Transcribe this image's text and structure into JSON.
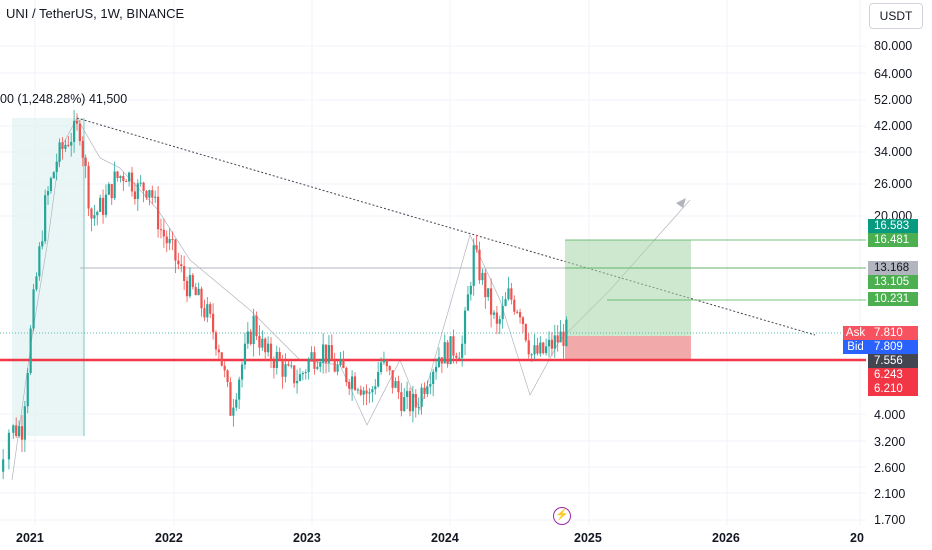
{
  "header": {
    "title": "UNI / TetherUS, 1W, BINANCE",
    "currency": "USDT"
  },
  "measure_label": "00 (1,248.28%) 41,500",
  "colors": {
    "up": "#26a69a",
    "down": "#ef5350",
    "support_line": "#f23645",
    "target_green": "#089981",
    "stop_red": "#f23645",
    "grid": "#f0f3fa"
  },
  "chart_data": {
    "type": "candlestick",
    "symbol": "UNI / TetherUS",
    "interval": "1W",
    "exchange": "BINANCE",
    "y_scale": "log",
    "y_ticks": [
      "80.000",
      "64.000",
      "52.000",
      "42.000",
      "34.000",
      "26.000",
      "20.000",
      "4.000",
      "3.200",
      "2.600",
      "2.100",
      "1.700"
    ],
    "x_ticks": [
      "2021",
      "2022",
      "2023",
      "2024",
      "2025",
      "2026",
      "20"
    ],
    "price_tags": [
      {
        "value": "16.583",
        "color": "#089981"
      },
      {
        "value": "16.481",
        "color": "#4caf50"
      },
      {
        "value": "13.168",
        "color": "#b2b5be"
      },
      {
        "value": "13.105",
        "color": "#4caf50"
      },
      {
        "value": "10.231",
        "color": "#4caf50"
      },
      {
        "value": "7.810",
        "color": "#f7525f"
      },
      {
        "value": "7.809",
        "color": "#2962ff"
      },
      {
        "value": "7.556",
        "color": "#434651"
      },
      {
        "value": "6.243",
        "color": "#f23645"
      },
      {
        "value": "6.210",
        "color": "#f23645"
      }
    ],
    "ask_label": "Ask",
    "bid_label": "Bid",
    "support_level": 6.21,
    "resistance_level": 13.168,
    "targets": [
      16.481,
      13.105,
      10.231
    ],
    "entry": 7.556,
    "stop": 6.243,
    "price_path": [
      [
        "2020-09",
        2.0
      ],
      [
        "2020-11",
        3.5
      ],
      [
        "2020-12",
        3.6
      ],
      [
        "2021-01",
        10.0
      ],
      [
        "2021-02",
        22.0
      ],
      [
        "2021-03",
        32.0
      ],
      [
        "2021-04",
        38.0
      ],
      [
        "2021-05",
        41.5
      ],
      [
        "2021-06",
        20.0
      ],
      [
        "2021-07",
        22.0
      ],
      [
        "2021-08",
        27.0
      ],
      [
        "2021-09",
        29.0
      ],
      [
        "2021-10",
        25.0
      ],
      [
        "2021-11",
        26.0
      ],
      [
        "2021-12",
        18.0
      ],
      [
        "2022-01",
        15.0
      ],
      [
        "2022-02",
        12.0
      ],
      [
        "2022-03",
        10.5
      ],
      [
        "2022-04",
        9.0
      ],
      [
        "2022-05",
        7.0
      ],
      [
        "2022-06",
        4.2
      ],
      [
        "2022-07",
        6.0
      ],
      [
        "2022-08",
        8.5
      ],
      [
        "2022-09",
        6.5
      ],
      [
        "2022-10",
        6.3
      ],
      [
        "2022-11",
        5.5
      ],
      [
        "2022-12",
        5.4
      ],
      [
        "2023-01",
        6.4
      ],
      [
        "2023-02",
        6.8
      ],
      [
        "2023-03",
        5.9
      ],
      [
        "2023-04",
        5.5
      ],
      [
        "2023-05",
        5.3
      ],
      [
        "2023-06",
        4.6
      ],
      [
        "2023-07",
        6.1
      ],
      [
        "2023-08",
        5.2
      ],
      [
        "2023-09",
        4.4
      ],
      [
        "2023-10",
        4.3
      ],
      [
        "2023-11",
        5.5
      ],
      [
        "2023-12",
        6.5
      ],
      [
        "2024-01",
        6.8
      ],
      [
        "2024-02",
        7.0
      ],
      [
        "2024-03",
        15.0
      ],
      [
        "2024-04",
        11.0
      ],
      [
        "2024-05",
        8.0
      ],
      [
        "2024-06",
        10.5
      ],
      [
        "2024-07",
        9.5
      ],
      [
        "2024-08",
        6.5
      ],
      [
        "2024-09",
        6.6
      ],
      [
        "2024-10",
        7.2
      ],
      [
        "2024-11",
        7.81
      ]
    ]
  }
}
